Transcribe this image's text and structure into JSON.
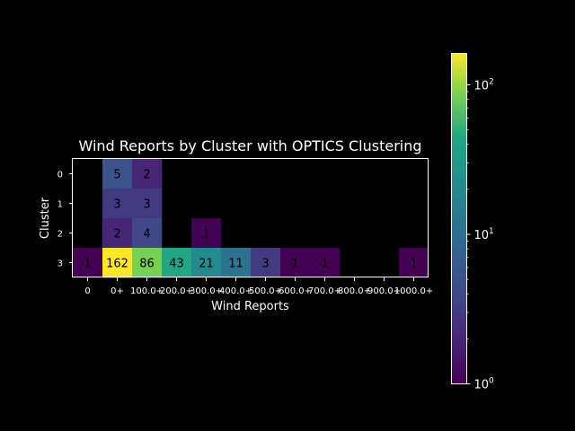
{
  "chart_data": {
    "type": "heatmap",
    "title": "Wind Reports by Cluster with OPTICS Clustering",
    "xlabel": "Wind Reports",
    "ylabel": "Cluster",
    "x_categories": [
      "0",
      "0+",
      "100.0+",
      "200.0+",
      "300.0+",
      "400.0+",
      "500.0+",
      "600.0+",
      "700.0+",
      "800.0+",
      "900.0+",
      "1000.0+"
    ],
    "y_categories": [
      "0",
      "1",
      "2",
      "3"
    ],
    "values": [
      [
        null,
        5,
        2,
        null,
        null,
        null,
        null,
        null,
        null,
        null,
        null,
        null
      ],
      [
        null,
        3,
        3,
        null,
        null,
        null,
        null,
        null,
        null,
        null,
        null,
        null
      ],
      [
        null,
        2,
        4,
        null,
        1,
        null,
        null,
        null,
        null,
        null,
        null,
        null
      ],
      [
        1,
        162,
        86,
        43,
        21,
        11,
        3,
        1,
        1,
        null,
        null,
        1
      ]
    ],
    "colorbar": {
      "scale": "log",
      "colormap": "viridis",
      "range": [
        1,
        162
      ],
      "ticks": [
        {
          "value": 1,
          "base": "10",
          "exp": "0"
        },
        {
          "value": 10,
          "base": "10",
          "exp": "1"
        },
        {
          "value": 100,
          "base": "10",
          "exp": "2"
        }
      ]
    },
    "grid": false
  },
  "colors": {
    "background": "#000000",
    "text": "#ffffff",
    "cell_text": "#000000"
  }
}
